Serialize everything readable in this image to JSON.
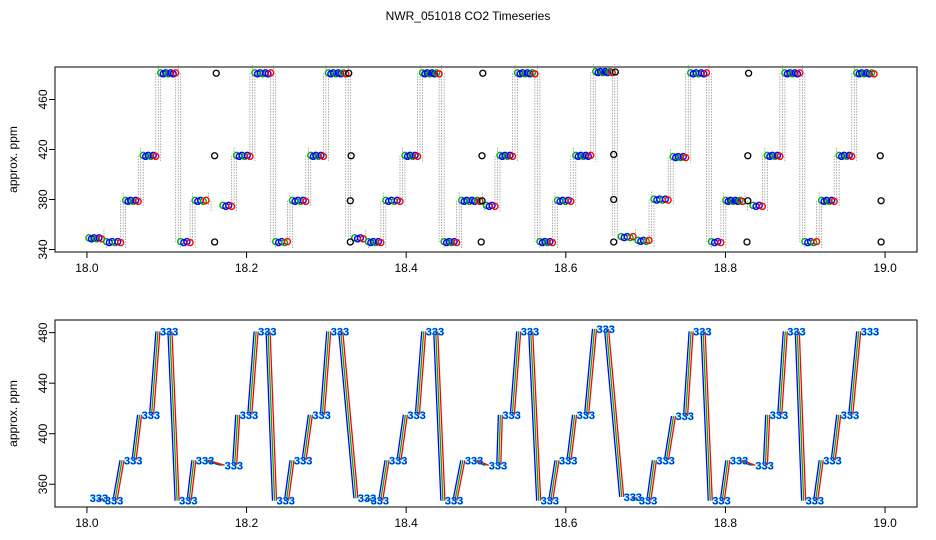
{
  "title": "NWR_051018  CO2 Timeseries",
  "chart_data": [
    {
      "type": "scatter",
      "ylabel": "approx. ppm",
      "xlim": [
        17.96,
        19.04
      ],
      "ylim": [
        338,
        486
      ],
      "xticks": [
        18.0,
        18.2,
        18.4,
        18.6,
        18.8,
        19.0
      ],
      "xtick_labels": [
        "18.0",
        "18.2",
        "18.4",
        "18.6",
        "18.8",
        "19.0"
      ],
      "yticks": [
        340,
        380,
        420,
        460
      ],
      "ytick_labels": [
        "340",
        "380",
        "420",
        "460"
      ],
      "plateaus": [
        {
          "x": [
            18.0,
            18.022
          ],
          "y": 349
        },
        {
          "x": [
            18.022,
            18.046
          ],
          "y": 346
        },
        {
          "x": [
            18.046,
            18.068
          ],
          "y": 379
        },
        {
          "x": [
            18.068,
            18.09
          ],
          "y": 415
        },
        {
          "x": [
            18.09,
            18.115
          ],
          "y": 481
        },
        {
          "x": [
            18.115,
            18.133
          ],
          "y": 346
        },
        {
          "x": [
            18.133,
            18.153
          ],
          "y": 379
        },
        {
          "x": [
            18.168,
            18.185
          ],
          "y": 375
        },
        {
          "x": [
            18.185,
            18.208
          ],
          "y": 415
        },
        {
          "x": [
            18.208,
            18.234
          ],
          "y": 481
        },
        {
          "x": [
            18.234,
            18.255
          ],
          "y": 346
        },
        {
          "x": [
            18.255,
            18.278
          ],
          "y": 379
        },
        {
          "x": [
            18.278,
            18.3
          ],
          "y": 415
        },
        {
          "x": [
            18.3,
            18.328
          ],
          "y": 481
        },
        {
          "x": [
            18.333,
            18.35
          ],
          "y": 349
        },
        {
          "x": [
            18.35,
            18.372
          ],
          "y": 346
        },
        {
          "x": [
            18.372,
            18.396
          ],
          "y": 379
        },
        {
          "x": [
            18.396,
            18.418
          ],
          "y": 415
        },
        {
          "x": [
            18.418,
            18.445
          ],
          "y": 481
        },
        {
          "x": [
            18.445,
            18.467
          ],
          "y": 346
        },
        {
          "x": [
            18.467,
            18.496
          ],
          "y": 379
        },
        {
          "x": [
            18.498,
            18.515
          ],
          "y": 375
        },
        {
          "x": [
            18.515,
            18.537
          ],
          "y": 415
        },
        {
          "x": [
            18.537,
            18.565
          ],
          "y": 481
        },
        {
          "x": [
            18.565,
            18.587
          ],
          "y": 346
        },
        {
          "x": [
            18.587,
            18.61
          ],
          "y": 379
        },
        {
          "x": [
            18.61,
            18.635
          ],
          "y": 415
        },
        {
          "x": [
            18.635,
            18.662
          ],
          "y": 482
        },
        {
          "x": [
            18.667,
            18.688
          ],
          "y": 350
        },
        {
          "x": [
            18.688,
            18.708
          ],
          "y": 347
        },
        {
          "x": [
            18.708,
            18.732
          ],
          "y": 380
        },
        {
          "x": [
            18.732,
            18.754
          ],
          "y": 414
        },
        {
          "x": [
            18.754,
            18.78
          ],
          "y": 481
        },
        {
          "x": [
            18.78,
            18.798
          ],
          "y": 346
        },
        {
          "x": [
            18.798,
            18.825
          ],
          "y": 379
        },
        {
          "x": [
            18.832,
            18.85
          ],
          "y": 375
        },
        {
          "x": [
            18.85,
            18.872
          ],
          "y": 415
        },
        {
          "x": [
            18.872,
            18.897
          ],
          "y": 481
        },
        {
          "x": [
            18.897,
            18.918
          ],
          "y": 346
        },
        {
          "x": [
            18.918,
            18.94
          ],
          "y": 379
        },
        {
          "x": [
            18.94,
            18.962
          ],
          "y": 415
        },
        {
          "x": [
            18.962,
            18.99
          ],
          "y": 481
        }
      ],
      "black_markers": [
        {
          "x": 18.16,
          "y": 346
        },
        {
          "x": 18.16,
          "y": 415
        },
        {
          "x": 18.162,
          "y": 481
        },
        {
          "x": 18.33,
          "y": 346
        },
        {
          "x": 18.33,
          "y": 379
        },
        {
          "x": 18.331,
          "y": 415
        },
        {
          "x": 18.328,
          "y": 481
        },
        {
          "x": 18.494,
          "y": 346
        },
        {
          "x": 18.495,
          "y": 379
        },
        {
          "x": 18.495,
          "y": 415
        },
        {
          "x": 18.496,
          "y": 481
        },
        {
          "x": 18.66,
          "y": 346
        },
        {
          "x": 18.66,
          "y": 380
        },
        {
          "x": 18.66,
          "y": 416
        },
        {
          "x": 18.662,
          "y": 482
        },
        {
          "x": 18.827,
          "y": 346
        },
        {
          "x": 18.828,
          "y": 379
        },
        {
          "x": 18.828,
          "y": 415
        },
        {
          "x": 18.829,
          "y": 481
        },
        {
          "x": 18.995,
          "y": 346
        },
        {
          "x": 18.995,
          "y": 379
        },
        {
          "x": 18.994,
          "y": 415
        }
      ],
      "colors": {
        "series": [
          "#ff0000",
          "#00aa00",
          "#0000ff",
          "#00cccc"
        ],
        "marker": "#000000",
        "line": "#888888"
      }
    },
    {
      "type": "scatter",
      "ylabel": "approx. ppm",
      "xlim": [
        17.96,
        19.04
      ],
      "ylim": [
        342,
        490
      ],
      "xticks": [
        18.0,
        18.2,
        18.4,
        18.6,
        18.8,
        19.0
      ],
      "xtick_labels": [
        "18.0",
        "18.2",
        "18.4",
        "18.6",
        "18.8",
        "19.0"
      ],
      "yticks": [
        360,
        400,
        440,
        480
      ],
      "ytick_labels": [
        "360",
        "400",
        "440",
        "480"
      ],
      "point_label": "333",
      "points": [
        {
          "x": 18.006,
          "y": 349
        },
        {
          "x": 18.025,
          "y": 347
        },
        {
          "x": 18.049,
          "y": 379
        },
        {
          "x": 18.071,
          "y": 415
        },
        {
          "x": 18.094,
          "y": 481
        },
        {
          "x": 18.118,
          "y": 347
        },
        {
          "x": 18.139,
          "y": 379
        },
        {
          "x": 18.175,
          "y": 375
        },
        {
          "x": 18.194,
          "y": 415
        },
        {
          "x": 18.217,
          "y": 481
        },
        {
          "x": 18.24,
          "y": 347
        },
        {
          "x": 18.262,
          "y": 379
        },
        {
          "x": 18.285,
          "y": 415
        },
        {
          "x": 18.308,
          "y": 481
        },
        {
          "x": 18.342,
          "y": 349
        },
        {
          "x": 18.358,
          "y": 347
        },
        {
          "x": 18.381,
          "y": 379
        },
        {
          "x": 18.404,
          "y": 415
        },
        {
          "x": 18.427,
          "y": 481
        },
        {
          "x": 18.451,
          "y": 347
        },
        {
          "x": 18.476,
          "y": 379
        },
        {
          "x": 18.506,
          "y": 375
        },
        {
          "x": 18.523,
          "y": 415
        },
        {
          "x": 18.546,
          "y": 481
        },
        {
          "x": 18.571,
          "y": 347
        },
        {
          "x": 18.594,
          "y": 379
        },
        {
          "x": 18.616,
          "y": 415
        },
        {
          "x": 18.641,
          "y": 483
        },
        {
          "x": 18.675,
          "y": 350
        },
        {
          "x": 18.694,
          "y": 347
        },
        {
          "x": 18.716,
          "y": 379
        },
        {
          "x": 18.74,
          "y": 414
        },
        {
          "x": 18.762,
          "y": 481
        },
        {
          "x": 18.786,
          "y": 347
        },
        {
          "x": 18.808,
          "y": 379
        },
        {
          "x": 18.84,
          "y": 375
        },
        {
          "x": 18.858,
          "y": 415
        },
        {
          "x": 18.88,
          "y": 481
        },
        {
          "x": 18.903,
          "y": 347
        },
        {
          "x": 18.925,
          "y": 379
        },
        {
          "x": 18.947,
          "y": 415
        },
        {
          "x": 18.972,
          "y": 481
        }
      ],
      "colors": {
        "series": [
          "#ff0000",
          "#00aa00",
          "#0000ff",
          "#00cccc"
        ]
      }
    }
  ]
}
